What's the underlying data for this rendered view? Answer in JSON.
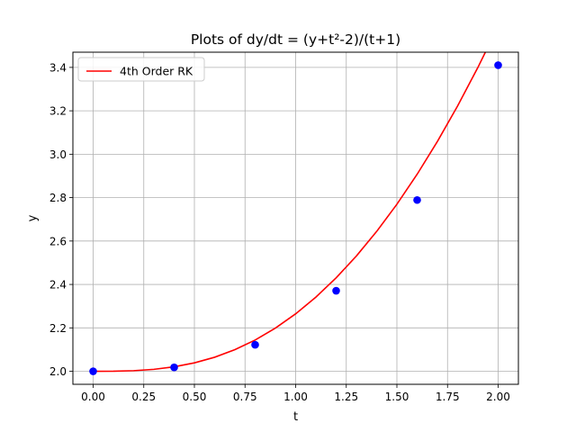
{
  "chart_data": {
    "type": "line",
    "title": "Plots of dy/dt = (y+t²-2)/(t+1)",
    "xlabel": "t",
    "ylabel": "y",
    "xlim": [
      -0.1,
      2.1
    ],
    "ylim": [
      1.94,
      3.47
    ],
    "xticks": [
      0.0,
      0.25,
      0.5,
      0.75,
      1.0,
      1.25,
      1.5,
      1.75,
      2.0
    ],
    "xtick_labels": [
      "0.00",
      "0.25",
      "0.50",
      "0.75",
      "1.00",
      "1.25",
      "1.50",
      "1.75",
      "2.00"
    ],
    "yticks": [
      2.0,
      2.2,
      2.4,
      2.6,
      2.8,
      3.0,
      3.2,
      3.4
    ],
    "ytick_labels": [
      "2.0",
      "2.2",
      "2.4",
      "2.6",
      "2.8",
      "3.0",
      "3.2",
      "3.4"
    ],
    "grid": true,
    "legend_position": "top-left",
    "series": [
      {
        "name": "4th Order RK",
        "kind": "line",
        "color": "#ff0000",
        "x": [
          0.0,
          0.1,
          0.2,
          0.3,
          0.4,
          0.5,
          0.6,
          0.7,
          0.8,
          0.9,
          1.0,
          1.1,
          1.2,
          1.3,
          1.4,
          1.5,
          1.6,
          1.7,
          1.8,
          1.9,
          2.0
        ],
        "y": [
          2.0,
          2.0003,
          2.0027,
          2.0089,
          2.0205,
          2.0387,
          2.0647,
          2.0995,
          2.144,
          2.1989,
          2.2646,
          2.3416,
          2.4304,
          2.5311,
          2.6441,
          2.7695,
          2.9077,
          3.0587,
          3.2227,
          3.3998,
          3.59
        ]
      },
      {
        "kind": "points",
        "color": "#0000ff",
        "x": [
          0.0,
          0.4,
          0.8,
          1.2,
          1.6,
          2.0
        ],
        "y": [
          2.0,
          2.018,
          2.122,
          2.371,
          2.789,
          3.41
        ]
      }
    ]
  }
}
